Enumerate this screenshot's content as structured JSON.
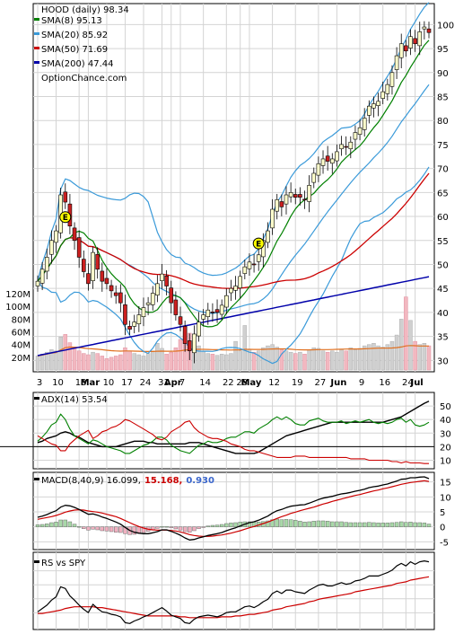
{
  "chart_data": [
    {
      "type": "candlestick",
      "legend": [
        {
          "label": "HOOD (daily) 98.34",
          "color": null
        },
        {
          "label": "SMA(8) 95.13",
          "color": "#008000"
        },
        {
          "label": "SMA(20) 85.92",
          "color": "#3a9ad9"
        },
        {
          "label": "SMA(50) 71.69",
          "color": "#cc0000"
        },
        {
          "label": "SMA(200) 47.44",
          "color": "#0000aa"
        }
      ],
      "watermark": "OptionChance.com",
      "y_ticks": [
        30,
        35,
        40,
        45,
        50,
        55,
        60,
        65,
        70,
        75,
        80,
        85,
        90,
        95,
        100
      ],
      "ylim": [
        28,
        104
      ],
      "x_labels": [
        "3",
        "10",
        "18",
        "Mar",
        "10",
        "17",
        "24",
        "31",
        "Apr",
        "7",
        "14",
        "22",
        "28",
        "May",
        "12",
        "19",
        "27",
        "Jun",
        "9",
        "16",
        "24",
        "Jul"
      ],
      "earnings_markers": [
        {
          "date": "Feb 12",
          "label": "E"
        },
        {
          "date": "Apr 30",
          "label": "E"
        }
      ],
      "close": [
        46.5,
        49.0,
        51.5,
        55.0,
        57.0,
        64.5,
        63.0,
        58.0,
        55.0,
        51.5,
        48.5,
        46.0,
        52.5,
        49.0,
        46.5,
        46.0,
        44.5,
        43.5,
        42.0,
        37.5,
        36.5,
        38.0,
        39.5,
        41.0,
        42.0,
        44.0,
        46.0,
        48.0,
        45.5,
        42.0,
        39.5,
        37.5,
        33.5,
        32.0,
        35.5,
        38.0,
        39.5,
        40.5,
        40.0,
        40.0,
        41.5,
        43.5,
        45.0,
        45.5,
        47.5,
        49.5,
        50.5,
        50.0,
        52.0,
        55.0,
        57.0,
        61.5,
        63.5,
        62.0,
        64.5,
        65.0,
        64.0,
        64.0,
        63.5,
        66.5,
        69.0,
        71.0,
        72.0,
        71.5,
        72.0,
        73.5,
        75.0,
        74.5,
        75.5,
        77.5,
        78.5,
        80.5,
        83.0,
        83.5,
        84.0,
        86.0,
        87.5,
        90.0,
        93.5,
        96.0,
        94.5,
        97.5,
        96.0,
        98.5,
        99.5,
        98.34
      ],
      "volume_m": [
        22,
        25,
        28,
        32,
        30,
        52,
        56,
        43,
        35,
        30,
        26,
        24,
        28,
        26,
        22,
        18,
        20,
        22,
        24,
        35,
        30,
        26,
        24,
        22,
        26,
        30,
        42,
        34,
        25,
        28,
        35,
        48,
        62,
        58,
        45,
        38,
        30,
        26,
        25,
        23,
        25,
        24,
        26,
        45,
        30,
        70,
        32,
        28,
        30,
        35,
        38,
        40,
        36,
        32,
        30,
        28,
        26,
        28,
        25,
        32,
        35,
        34,
        30,
        28,
        30,
        28,
        32,
        30,
        35,
        32,
        34,
        38,
        40,
        42,
        38,
        36,
        40,
        45,
        55,
        80,
        115,
        78,
        45,
        40,
        42,
        38
      ],
      "volume_ticks": [
        "20M",
        "40M",
        "60M",
        "80M",
        "100M",
        "120M"
      ],
      "volume_tick_values": [
        20,
        40,
        60,
        80,
        100,
        120
      ]
    },
    {
      "type": "line",
      "legend": "ADX(14) 53.54",
      "y_ticks": [
        10,
        20,
        30,
        40,
        50
      ],
      "ylim": [
        5,
        58
      ],
      "reference_lines": [
        20
      ],
      "series": [
        {
          "name": "ADX",
          "color": "#000000",
          "values": [
            23,
            24,
            26,
            27,
            28,
            30,
            31,
            30,
            28,
            27,
            25,
            23,
            22,
            21,
            20,
            20,
            20,
            20,
            21,
            22,
            23,
            24,
            24,
            24,
            23,
            23,
            22,
            22,
            22,
            22,
            22,
            22,
            22,
            23,
            23,
            23,
            22,
            21,
            20,
            19,
            18,
            17,
            16,
            15,
            15,
            15,
            15,
            15,
            16,
            18,
            20,
            22,
            24,
            26,
            28,
            29,
            30,
            31,
            32,
            33,
            34,
            35,
            36,
            37,
            38,
            38,
            38,
            38,
            38,
            38,
            38,
            38,
            38,
            38,
            38,
            38,
            39,
            40,
            41,
            42,
            44,
            46,
            48,
            50,
            52,
            53.54
          ]
        },
        {
          "name": "+DI",
          "color": "#008000",
          "values": [
            24,
            27,
            31,
            36,
            38,
            44,
            40,
            33,
            28,
            26,
            24,
            22,
            25,
            24,
            22,
            20,
            19,
            18,
            17,
            15,
            15,
            17,
            19,
            21,
            22,
            24,
            27,
            27,
            25,
            21,
            19,
            17,
            16,
            15,
            18,
            21,
            22,
            24,
            23,
            23,
            24,
            26,
            27,
            27,
            29,
            31,
            31,
            30,
            33,
            35,
            37,
            40,
            42,
            40,
            42,
            40,
            37,
            36,
            36,
            39,
            40,
            41,
            39,
            38,
            38,
            38,
            39,
            37,
            38,
            39,
            38,
            39,
            40,
            38,
            37,
            38,
            37,
            38,
            40,
            41,
            38,
            40,
            36,
            35,
            36,
            38
          ]
        },
        {
          "name": "-DI",
          "color": "#cc0000",
          "values": [
            28,
            26,
            24,
            22,
            21,
            17,
            17,
            22,
            25,
            28,
            30,
            32,
            26,
            28,
            31,
            32,
            34,
            35,
            37,
            40,
            39,
            37,
            35,
            33,
            31,
            29,
            26,
            25,
            27,
            31,
            33,
            35,
            38,
            39,
            34,
            31,
            29,
            27,
            26,
            26,
            25,
            24,
            22,
            21,
            20,
            18,
            17,
            17,
            16,
            15,
            14,
            13,
            12,
            12,
            12,
            12,
            13,
            13,
            13,
            12,
            12,
            12,
            12,
            12,
            12,
            12,
            12,
            12,
            11,
            11,
            11,
            11,
            10,
            10,
            10,
            10,
            10,
            9,
            9,
            8,
            9,
            8,
            8,
            8,
            7.5,
            7.5
          ]
        }
      ]
    },
    {
      "type": "line",
      "legend": [
        "MACD(8,40,9) 16.099,",
        "15.168,",
        "0.930"
      ],
      "legend_colors": [
        "#000000",
        "#cc0000",
        "#3a66cc"
      ],
      "y_ticks": [
        -5,
        0,
        5,
        10,
        15
      ],
      "ylim": [
        -7,
        17
      ],
      "series": [
        {
          "name": "MACD",
          "color": "#000000",
          "values": [
            3.2,
            3.6,
            4.1,
            4.8,
            5.4,
            6.6,
            7.2,
            7.0,
            6.5,
            5.8,
            5.0,
            4.2,
            4.3,
            3.9,
            3.3,
            2.8,
            2.2,
            1.6,
            0.9,
            -0.2,
            -1.2,
            -1.8,
            -2.1,
            -2.3,
            -2.3,
            -2.0,
            -1.6,
            -1.0,
            -1.0,
            -1.5,
            -2.1,
            -2.8,
            -3.7,
            -4.4,
            -4.2,
            -3.7,
            -3.3,
            -2.9,
            -2.6,
            -2.3,
            -1.9,
            -1.3,
            -0.8,
            -0.3,
            0.3,
            0.9,
            1.4,
            1.7,
            2.2,
            2.9,
            3.6,
            4.6,
            5.4,
            5.8,
            6.4,
            6.9,
            7.1,
            7.3,
            7.4,
            7.9,
            8.5,
            9.1,
            9.6,
            9.9,
            10.2,
            10.6,
            11.0,
            11.2,
            11.5,
            11.9,
            12.2,
            12.6,
            13.1,
            13.4,
            13.6,
            14.0,
            14.3,
            14.8,
            15.3,
            15.9,
            16.0,
            16.4,
            16.4,
            16.6,
            16.7,
            16.1
          ]
        },
        {
          "name": "Signal",
          "color": "#cc0000",
          "values": [
            2.5,
            2.8,
            3.1,
            3.4,
            3.8,
            4.3,
            4.9,
            5.3,
            5.6,
            5.7,
            5.6,
            5.3,
            5.1,
            4.9,
            4.6,
            4.2,
            3.8,
            3.4,
            2.8,
            2.1,
            1.4,
            0.7,
            0.1,
            -0.4,
            -0.8,
            -1.0,
            -1.1,
            -1.1,
            -1.1,
            -1.2,
            -1.4,
            -1.7,
            -2.1,
            -2.6,
            -2.9,
            -3.1,
            -3.2,
            -3.2,
            -3.1,
            -2.9,
            -2.7,
            -2.4,
            -2.1,
            -1.7,
            -1.3,
            -0.8,
            -0.3,
            0.1,
            0.6,
            1.1,
            1.6,
            2.2,
            2.8,
            3.4,
            3.9,
            4.5,
            4.9,
            5.4,
            5.8,
            6.2,
            6.6,
            7.1,
            7.6,
            8.0,
            8.5,
            8.9,
            9.3,
            9.7,
            10.1,
            10.5,
            10.8,
            11.2,
            11.6,
            12.0,
            12.3,
            12.7,
            13.0,
            13.4,
            13.8,
            14.2,
            14.5,
            14.8,
            15.0,
            15.2,
            15.4,
            15.168
          ]
        },
        {
          "name": "Histogram",
          "color": "#9acd9a",
          "values": [
            0.7,
            0.8,
            1.0,
            1.4,
            1.6,
            2.3,
            2.3,
            1.7,
            0.9,
            0.1,
            -0.6,
            -1.1,
            -0.8,
            -1.0,
            -1.3,
            -1.4,
            -1.6,
            -1.8,
            -1.9,
            -2.3,
            -2.6,
            -2.5,
            -2.2,
            -1.9,
            -1.5,
            -1.0,
            -0.5,
            0.1,
            0.1,
            -0.3,
            -0.7,
            -1.1,
            -1.6,
            -1.8,
            -1.3,
            -0.6,
            -0.1,
            0.3,
            0.5,
            0.6,
            0.8,
            1.1,
            1.3,
            1.4,
            1.6,
            1.7,
            1.7,
            1.6,
            1.6,
            1.8,
            2.0,
            2.4,
            2.6,
            2.4,
            2.5,
            2.4,
            2.2,
            1.9,
            1.6,
            1.7,
            1.9,
            2.0,
            2.0,
            1.9,
            1.7,
            1.7,
            1.7,
            1.5,
            1.4,
            1.4,
            1.4,
            1.4,
            1.5,
            1.4,
            1.3,
            1.3,
            1.3,
            1.4,
            1.5,
            1.7,
            1.5,
            1.6,
            1.4,
            1.4,
            1.3,
            0.93
          ]
        }
      ]
    },
    {
      "type": "line",
      "legend": "RS vs SPY",
      "series": [
        {
          "name": "RS",
          "color": "#000000",
          "values": [
            0.8,
            0.84,
            0.88,
            0.94,
            0.98,
            1.1,
            1.08,
            0.99,
            0.94,
            0.88,
            0.83,
            0.79,
            0.89,
            0.84,
            0.8,
            0.79,
            0.77,
            0.76,
            0.74,
            0.67,
            0.66,
            0.69,
            0.71,
            0.74,
            0.76,
            0.79,
            0.82,
            0.85,
            0.81,
            0.76,
            0.74,
            0.72,
            0.67,
            0.66,
            0.71,
            0.74,
            0.75,
            0.76,
            0.75,
            0.74,
            0.76,
            0.79,
            0.8,
            0.8,
            0.83,
            0.86,
            0.87,
            0.85,
            0.88,
            0.92,
            0.95,
            1.02,
            1.05,
            1.02,
            1.06,
            1.06,
            1.04,
            1.03,
            1.02,
            1.06,
            1.09,
            1.12,
            1.13,
            1.11,
            1.11,
            1.13,
            1.15,
            1.13,
            1.14,
            1.17,
            1.18,
            1.2,
            1.23,
            1.23,
            1.23,
            1.25,
            1.27,
            1.3,
            1.35,
            1.38,
            1.35,
            1.4,
            1.37,
            1.4,
            1.41,
            1.4
          ]
        },
        {
          "name": "RS average",
          "color": "#cc0000",
          "values": [
            0.78,
            0.78,
            0.79,
            0.8,
            0.81,
            0.82,
            0.84,
            0.85,
            0.86,
            0.86,
            0.86,
            0.86,
            0.86,
            0.85,
            0.85,
            0.84,
            0.83,
            0.82,
            0.81,
            0.8,
            0.79,
            0.78,
            0.77,
            0.76,
            0.75,
            0.75,
            0.75,
            0.75,
            0.75,
            0.75,
            0.75,
            0.74,
            0.74,
            0.73,
            0.73,
            0.73,
            0.73,
            0.73,
            0.73,
            0.73,
            0.74,
            0.74,
            0.74,
            0.75,
            0.75,
            0.76,
            0.77,
            0.77,
            0.78,
            0.79,
            0.8,
            0.82,
            0.83,
            0.84,
            0.86,
            0.87,
            0.88,
            0.89,
            0.9,
            0.92,
            0.93,
            0.95,
            0.96,
            0.97,
            0.98,
            0.99,
            1.0,
            1.01,
            1.02,
            1.04,
            1.05,
            1.06,
            1.07,
            1.08,
            1.09,
            1.1,
            1.11,
            1.12,
            1.14,
            1.15,
            1.16,
            1.18,
            1.19,
            1.2,
            1.21,
            1.22
          ]
        }
      ]
    }
  ]
}
